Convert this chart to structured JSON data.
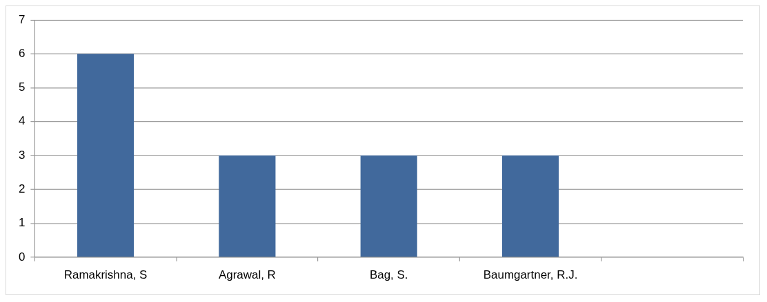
{
  "chart_data": {
    "type": "bar",
    "categories": [
      "Ramakrishna, S",
      "Agrawal, R",
      "Bag, S.",
      "Baumgartner, R.J.",
      null
    ],
    "values": [
      6,
      3,
      3,
      3,
      null
    ],
    "color": "#41699c",
    "ylim": [
      0,
      7
    ],
    "yticks": [
      0,
      1,
      2,
      3,
      4,
      5,
      6,
      7
    ],
    "grid": "y",
    "legend": false
  }
}
